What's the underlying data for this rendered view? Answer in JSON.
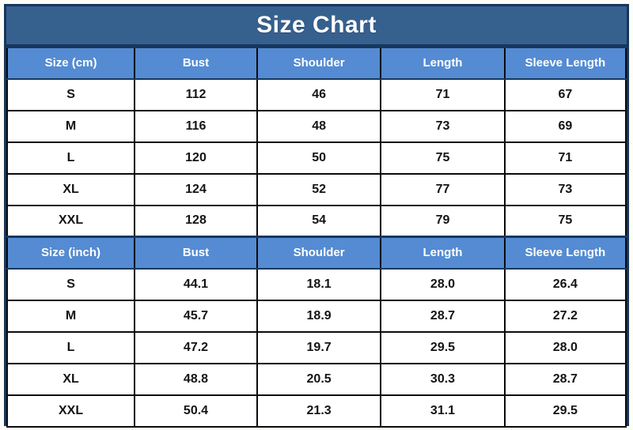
{
  "title": "Size Chart",
  "colors": {
    "title_bg": "#36618F",
    "header_bg": "#548BD2",
    "border_dark": "#17375D",
    "header_text": "#FFFFFF",
    "cell_text": "#141414"
  },
  "cm": {
    "headers": [
      "Size (cm)",
      "Bust",
      "Shoulder",
      "Length",
      "Sleeve Length"
    ],
    "rows": [
      [
        "S",
        "112",
        "46",
        "71",
        "67"
      ],
      [
        "M",
        "116",
        "48",
        "73",
        "69"
      ],
      [
        "L",
        "120",
        "50",
        "75",
        "71"
      ],
      [
        "XL",
        "124",
        "52",
        "77",
        "73"
      ],
      [
        "XXL",
        "128",
        "54",
        "79",
        "75"
      ]
    ]
  },
  "inch": {
    "headers": [
      "Size (inch)",
      "Bust",
      "Shoulder",
      "Length",
      "Sleeve Length"
    ],
    "rows": [
      [
        "S",
        "44.1",
        "18.1",
        "28.0",
        "26.4"
      ],
      [
        "M",
        "45.7",
        "18.9",
        "28.7",
        "27.2"
      ],
      [
        "L",
        "47.2",
        "19.7",
        "29.5",
        "28.0"
      ],
      [
        "XL",
        "48.8",
        "20.5",
        "30.3",
        "28.7"
      ],
      [
        "XXL",
        "50.4",
        "21.3",
        "31.1",
        "29.5"
      ]
    ]
  },
  "chart_data": [
    {
      "type": "table",
      "title": "Size Chart (cm)",
      "columns": [
        "Size (cm)",
        "Bust",
        "Shoulder",
        "Length",
        "Sleeve Length"
      ],
      "rows": [
        [
          "S",
          112,
          46,
          71,
          67
        ],
        [
          "M",
          116,
          48,
          73,
          69
        ],
        [
          "L",
          120,
          50,
          75,
          71
        ],
        [
          "XL",
          124,
          52,
          77,
          73
        ],
        [
          "XXL",
          128,
          54,
          79,
          75
        ]
      ]
    },
    {
      "type": "table",
      "title": "Size Chart (inch)",
      "columns": [
        "Size (inch)",
        "Bust",
        "Shoulder",
        "Length",
        "Sleeve Length"
      ],
      "rows": [
        [
          "S",
          44.1,
          18.1,
          28.0,
          26.4
        ],
        [
          "M",
          45.7,
          18.9,
          28.7,
          27.2
        ],
        [
          "L",
          47.2,
          19.7,
          29.5,
          28.0
        ],
        [
          "XL",
          48.8,
          20.5,
          30.3,
          28.7
        ],
        [
          "XXL",
          50.4,
          21.3,
          31.1,
          29.5
        ]
      ]
    }
  ]
}
